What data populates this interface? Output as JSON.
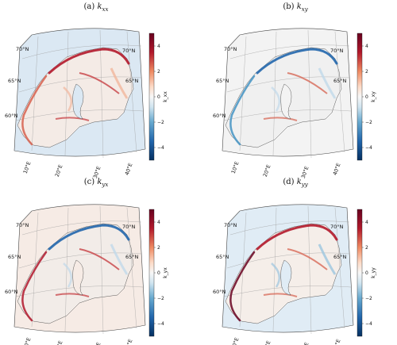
{
  "panels": [
    {
      "key": "kxx",
      "letter": "(a) ",
      "sym": "k",
      "sub": "xx",
      "cbar_label": "k_xx"
    },
    {
      "key": "kxy",
      "letter": "(b) ",
      "sym": "k",
      "sub": "xy",
      "cbar_label": "k_xy"
    },
    {
      "key": "kyx",
      "letter": "(c) ",
      "sym": "k",
      "sub": "yx",
      "cbar_label": "k_yx"
    },
    {
      "key": "kyy",
      "letter": "(d) ",
      "sym": "k",
      "sub": "yy",
      "cbar_label": "k_yy"
    }
  ],
  "lat_labels": [
    "70°N",
    "65°N",
    "60°N"
  ],
  "lon_labels": [
    "10°E",
    "20°E",
    "30°E",
    "40°E"
  ],
  "colorbar": {
    "ticks": [
      "4",
      "2",
      "0",
      "−2",
      "−4"
    ],
    "range": [
      -5,
      5
    ],
    "colormap": "RdBu_r",
    "top_color": "#67001f",
    "mid_color": "#f7f7f7",
    "bottom_color": "#053061"
  }
}
